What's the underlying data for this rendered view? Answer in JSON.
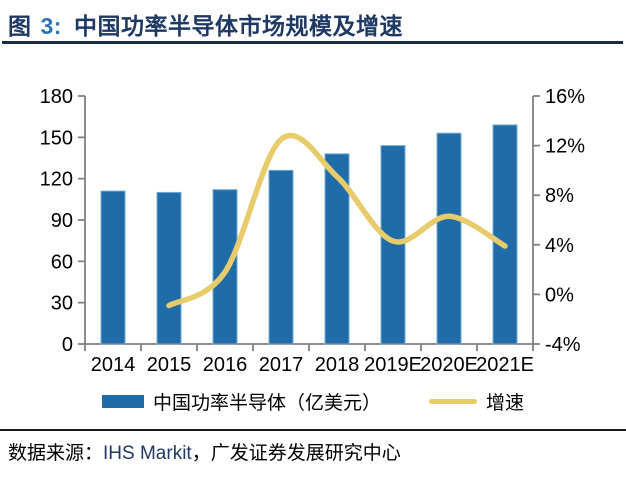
{
  "header": {
    "fig_label": "图",
    "fig_number": "3:",
    "title": "中国功率半导体市场规模及增速"
  },
  "chart_data": {
    "type": "bar",
    "subtype": "bar+line combo, dual y-axis",
    "title": "中国功率半导体市场规模及增速",
    "categories": [
      "2014",
      "2015",
      "2016",
      "2017",
      "2018",
      "2019E",
      "2020E",
      "2021E"
    ],
    "series": [
      {
        "name": "中国功率半导体（亿美元）",
        "type": "bar",
        "y_axis": "left",
        "values": [
          111,
          110,
          112,
          126,
          138,
          144,
          153,
          159
        ]
      },
      {
        "name": "增速",
        "type": "line",
        "y_axis": "right",
        "values": [
          null,
          -0.9,
          1.8,
          12.5,
          9.5,
          4.3,
          6.3,
          3.9
        ]
      }
    ],
    "left_axis": {
      "min": 0,
      "max": 180,
      "tick_step": 30,
      "tick_labels": [
        "0",
        "30",
        "60",
        "90",
        "120",
        "150",
        "180"
      ]
    },
    "right_axis": {
      "min": -4,
      "max": 16,
      "tick_step": 4,
      "tick_labels": [
        "-4%",
        "0%",
        "4%",
        "8%",
        "12%",
        "16%"
      ]
    },
    "grid": false,
    "legend_position": "bottom"
  },
  "legend": {
    "bar_label": "中国功率半导体（亿美元）",
    "line_label": "增速"
  },
  "footer": {
    "source_label": "数据来源：",
    "source_en": "IHS Markit",
    "source_rest": "，广发证券发展研究中心"
  },
  "colors": {
    "bar": "#1F6CA8",
    "bar_border": "#74A9D0",
    "line": "#E8CB6B",
    "title_navy": "#1F3864",
    "fig_number_blue": "#2E74B5",
    "axis_gray": "#808080",
    "axis_text": "#000000",
    "title_underline": "#1B2A44",
    "footer_rule": "#1A1A1A",
    "source_en_color": "#1F3864"
  }
}
